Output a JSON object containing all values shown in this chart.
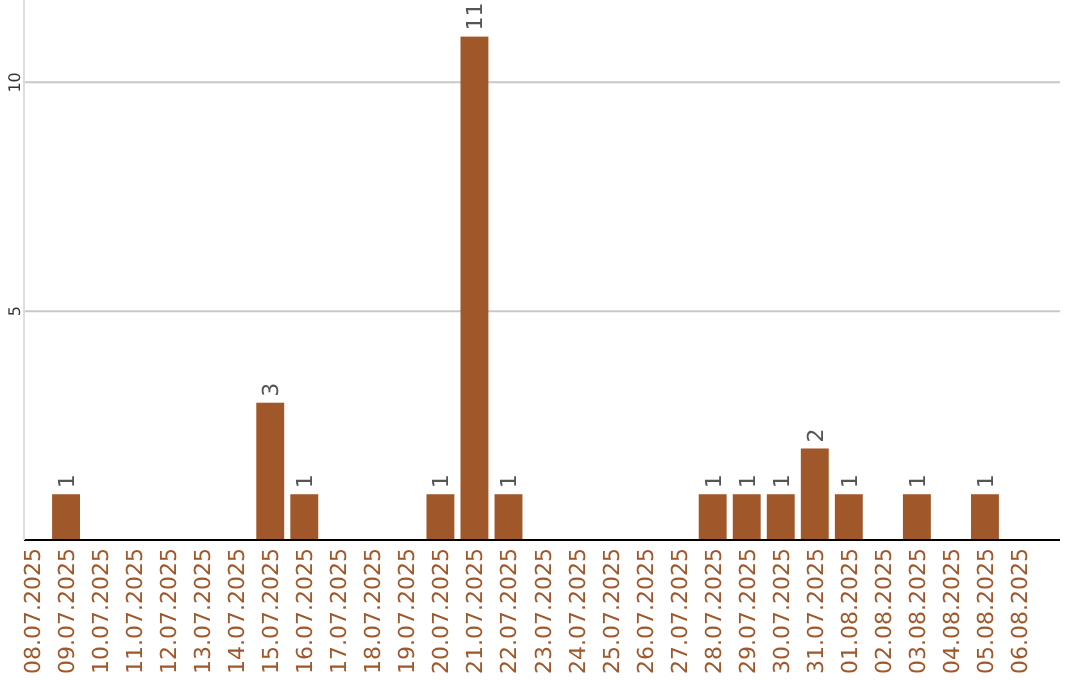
{
  "chart_data": {
    "type": "bar",
    "categories": [
      "08.07.2025",
      "09.07.2025",
      "10.07.2025",
      "11.07.2025",
      "12.07.2025",
      "13.07.2025",
      "14.07.2025",
      "15.07.2025",
      "16.07.2025",
      "17.07.2025",
      "18.07.2025",
      "19.07.2025",
      "20.07.2025",
      "21.07.2025",
      "22.07.2025",
      "23.07.2025",
      "24.07.2025",
      "25.07.2025",
      "26.07.2025",
      "27.07.2025",
      "28.07.2025",
      "29.07.2025",
      "30.07.2025",
      "31.07.2025",
      "01.08.2025",
      "02.08.2025",
      "03.08.2025",
      "04.08.2025",
      "05.08.2025",
      "06.08.2025"
    ],
    "values": [
      0,
      1,
      0,
      0,
      0,
      0,
      0,
      3,
      1,
      0,
      0,
      0,
      1,
      11,
      1,
      0,
      0,
      0,
      0,
      0,
      1,
      1,
      1,
      2,
      1,
      0,
      1,
      0,
      1,
      0
    ],
    "value_labels": [
      null,
      "1",
      null,
      null,
      null,
      null,
      null,
      "3",
      "1",
      null,
      null,
      null,
      "1",
      "11",
      "1",
      null,
      null,
      null,
      null,
      null,
      "1",
      "1",
      "1",
      "2",
      "1",
      null,
      "1",
      null,
      "1",
      null
    ],
    "color": "#a0572a",
    "ylim": [
      0,
      11.8
    ],
    "yticks": [
      5,
      10
    ],
    "grid": "y"
  }
}
